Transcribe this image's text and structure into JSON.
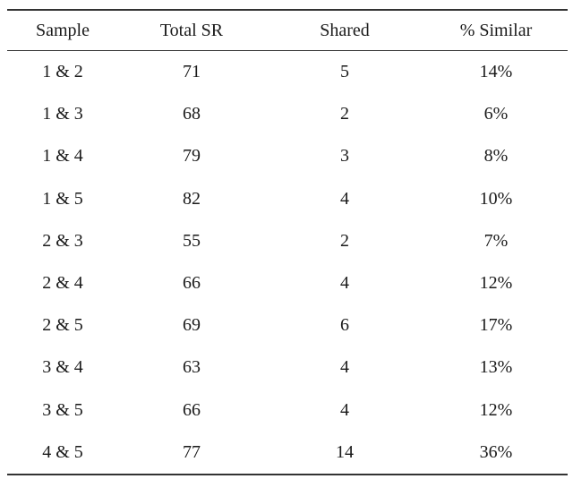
{
  "table": {
    "headers": [
      "Sample",
      "Total SR",
      "Shared",
      "% Similar"
    ],
    "rows": [
      [
        "1 & 2",
        "71",
        "5",
        "14%"
      ],
      [
        "1 & 3",
        "68",
        "2",
        "6%"
      ],
      [
        "1 & 4",
        "79",
        "3",
        "8%"
      ],
      [
        "1 & 5",
        "82",
        "4",
        "10%"
      ],
      [
        "2 & 3",
        "55",
        "2",
        "7%"
      ],
      [
        "2 & 4",
        "66",
        "4",
        "12%"
      ],
      [
        "2 & 5",
        "69",
        "6",
        "17%"
      ],
      [
        "3 & 4",
        "63",
        "4",
        "13%"
      ],
      [
        "3 & 5",
        "66",
        "4",
        "12%"
      ],
      [
        "4 & 5",
        "77",
        "14",
        "36%"
      ]
    ]
  }
}
